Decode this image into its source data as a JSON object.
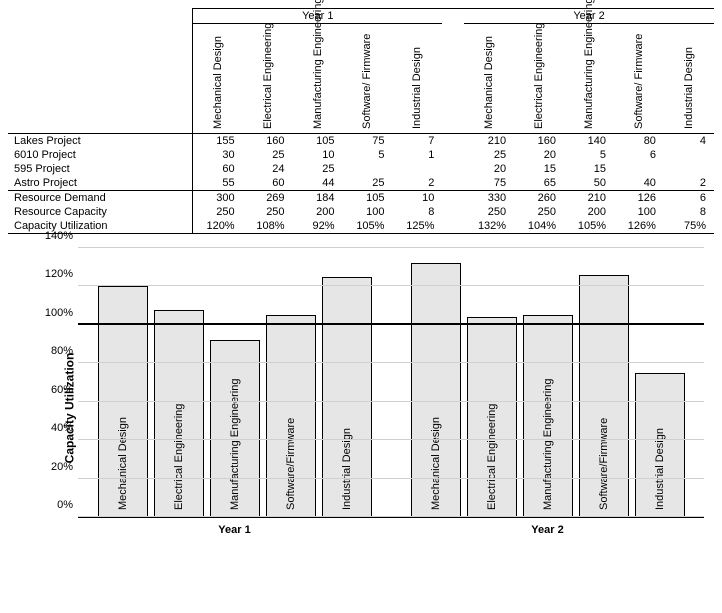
{
  "table": {
    "year_headers": [
      "Year 1",
      "Year 2"
    ],
    "columns": [
      "Mechanical Design",
      "Electrical Engineering",
      "Manufacturing Engineering",
      "Software/ Firmware",
      "Industrial Design"
    ],
    "project_rows": [
      {
        "label": "Lakes Project",
        "y1": [
          "155",
          "160",
          "105",
          "75",
          "7"
        ],
        "y2": [
          "210",
          "160",
          "140",
          "80",
          "4"
        ]
      },
      {
        "label": "6010 Project",
        "y1": [
          "30",
          "25",
          "10",
          "5",
          "1"
        ],
        "y2": [
          "25",
          "20",
          "5",
          "6",
          ""
        ]
      },
      {
        "label": "595 Project",
        "y1": [
          "60",
          "24",
          "25",
          "",
          ""
        ],
        "y2": [
          "20",
          "15",
          "15",
          "",
          ""
        ]
      },
      {
        "label": "Astro Project",
        "y1": [
          "55",
          "60",
          "44",
          "25",
          "2"
        ],
        "y2": [
          "75",
          "65",
          "50",
          "40",
          "2"
        ]
      }
    ],
    "summary_rows": [
      {
        "label": "Resource Demand",
        "y1": [
          "300",
          "269",
          "184",
          "105",
          "10"
        ],
        "y2": [
          "330",
          "260",
          "210",
          "126",
          "6"
        ]
      },
      {
        "label": "Resource Capacity",
        "y1": [
          "250",
          "250",
          "200",
          "100",
          "8"
        ],
        "y2": [
          "250",
          "250",
          "200",
          "100",
          "8"
        ]
      },
      {
        "label": "Capacity Utilization",
        "y1": [
          "120%",
          "108%",
          "92%",
          "105%",
          "125%"
        ],
        "y2": [
          "132%",
          "104%",
          "105%",
          "126%",
          "75%"
        ]
      }
    ]
  },
  "chart": {
    "type": "bar",
    "ylabel": "Capacity Utilization",
    "ylim_max": 140,
    "ytick_step": 20,
    "reference_line": 100,
    "bar_fill": "#e6e6e6",
    "bar_border": "#000000",
    "grid_color": "#d0d0d0",
    "background": "#ffffff",
    "groups": [
      {
        "label": "Year 1",
        "bars": [
          {
            "label": "Mechanical Design",
            "value": 120
          },
          {
            "label": "Electrical Engineering",
            "value": 108
          },
          {
            "label": "Manufacturing Engineering",
            "value": 92
          },
          {
            "label": "Software/Firmware",
            "value": 105
          },
          {
            "label": "Industrial Design",
            "value": 125
          }
        ]
      },
      {
        "label": "Year 2",
        "bars": [
          {
            "label": "Mechanical Design",
            "value": 132
          },
          {
            "label": "Electrical Engineering",
            "value": 104
          },
          {
            "label": "Manufacturing Engineering",
            "value": 105
          },
          {
            "label": "Software/Firmware",
            "value": 126
          },
          {
            "label": "Industrial Design",
            "value": 75
          }
        ]
      }
    ]
  }
}
